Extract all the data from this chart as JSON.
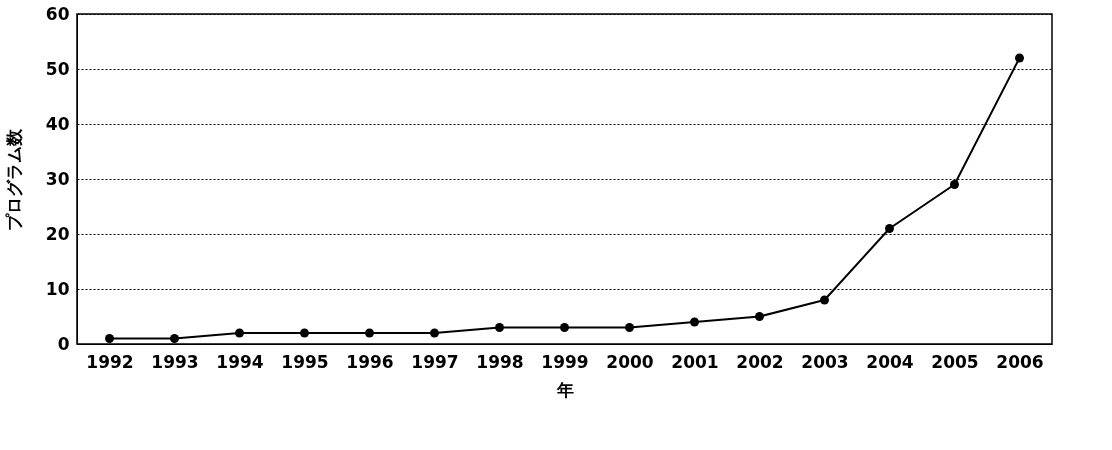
{
  "chart_data": {
    "type": "line",
    "xlabel": "年",
    "ylabel": "プログラム数",
    "categories": [
      "1992",
      "1993",
      "1994",
      "1995",
      "1996",
      "1997",
      "1998",
      "1999",
      "2000",
      "2001",
      "2002",
      "2003",
      "2004",
      "2005",
      "2006"
    ],
    "series": [
      {
        "color": "#000000",
        "values": [
          1,
          1,
          2,
          2,
          2,
          2,
          3,
          3,
          3,
          4,
          5,
          8,
          21,
          29,
          52
        ]
      }
    ],
    "ylim": [
      0,
      60
    ],
    "yticks": [
      0,
      10,
      20,
      30,
      40,
      50,
      60
    ],
    "grid": "y",
    "marker": "circle",
    "line_style": "solid"
  }
}
